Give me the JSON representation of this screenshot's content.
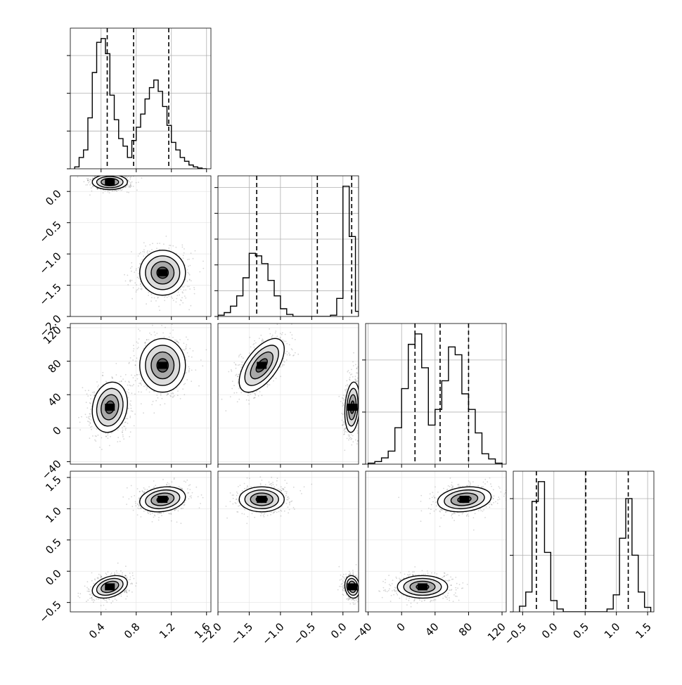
{
  "chart_data": {
    "type": "corner",
    "parameters": [
      {
        "range": [
          0.05,
          1.65
        ],
        "ticks": [
          0.4,
          0.8,
          1.2,
          1.6
        ],
        "tick_labels": [
          "0.4",
          "0.8",
          "1.2",
          "1.6"
        ],
        "quantiles": [
          0.47,
          0.77,
          1.17
        ],
        "hist_y_ticks": [
          0,
          1,
          2,
          3
        ]
      },
      {
        "range": [
          -2.0,
          0.25
        ],
        "ticks": [
          -2.0,
          -1.5,
          -1.0,
          -0.5,
          0.0
        ],
        "tick_labels": [
          "−2.0",
          "−1.5",
          "−1.0",
          "−0.5",
          "0.0"
        ],
        "quantiles": [
          -1.38,
          -0.41,
          0.14
        ],
        "hist_y_ticks": [
          0,
          1,
          2,
          3,
          4,
          5
        ]
      },
      {
        "range": [
          -43,
          125
        ],
        "ticks": [
          -40,
          0,
          40,
          80,
          120
        ],
        "tick_labels": [
          "−40",
          "0",
          "40",
          "80",
          "120"
        ],
        "quantiles": [
          16,
          46,
          80
        ],
        "hist_y_ticks": [
          0,
          1,
          2
        ]
      },
      {
        "range": [
          -0.65,
          1.6
        ],
        "ticks": [
          -0.5,
          0.0,
          0.5,
          1.0,
          1.5
        ],
        "tick_labels": [
          "−0.5",
          "0.0",
          "0.5",
          "1.0",
          "1.5"
        ],
        "quantiles": [
          -0.28,
          0.51,
          1.19
        ],
        "hist_y_ticks": [
          0,
          1,
          2
        ]
      }
    ],
    "histograms": [
      {
        "param": 0,
        "edges": [
          0.1,
          0.15,
          0.2,
          0.25,
          0.3,
          0.35,
          0.4,
          0.45,
          0.5,
          0.55,
          0.6,
          0.65,
          0.7,
          0.75,
          0.8,
          0.85,
          0.9,
          0.95,
          1.0,
          1.05,
          1.1,
          1.15,
          1.2,
          1.25,
          1.3,
          1.35,
          1.4,
          1.45,
          1.5,
          1.55,
          1.6
        ],
        "counts": [
          0.05,
          0.3,
          0.5,
          1.35,
          2.55,
          3.35,
          3.45,
          3.05,
          1.95,
          1.3,
          0.8,
          0.6,
          0.3,
          0.75,
          1.1,
          1.45,
          1.85,
          2.15,
          2.35,
          2.05,
          1.65,
          1.15,
          0.7,
          0.5,
          0.3,
          0.2,
          0.1,
          0.05,
          0.02,
          0.0
        ]
      },
      {
        "param": 1,
        "edges": [
          -2.0,
          -1.9,
          -1.8,
          -1.7,
          -1.6,
          -1.5,
          -1.4,
          -1.3,
          -1.2,
          -1.1,
          -1.0,
          -0.9,
          -0.8,
          -0.7,
          -0.6,
          -0.5,
          -0.4,
          -0.3,
          -0.2,
          -0.1,
          0.0,
          0.1,
          0.2,
          0.25
        ],
        "counts": [
          0.05,
          0.15,
          0.4,
          0.8,
          1.5,
          2.45,
          2.35,
          2.05,
          1.4,
          0.8,
          0.3,
          0.08,
          0.0,
          0.0,
          0.0,
          0.0,
          0.0,
          0.0,
          0.05,
          0.7,
          5.05,
          3.1,
          0.2
        ]
      },
      {
        "param": 2,
        "edges": [
          -40,
          -32,
          -24,
          -16,
          -8,
          0,
          8,
          16,
          24,
          32,
          40,
          48,
          56,
          64,
          72,
          80,
          88,
          96,
          104,
          112,
          120
        ],
        "counts": [
          0.02,
          0.05,
          0.12,
          0.25,
          0.7,
          1.45,
          2.3,
          2.5,
          1.85,
          0.75,
          1.05,
          1.6,
          2.25,
          2.1,
          1.35,
          1.05,
          0.6,
          0.2,
          0.1,
          0.02
        ]
      },
      {
        "param": 3,
        "edges": [
          -0.55,
          -0.45,
          -0.35,
          -0.25,
          -0.15,
          -0.05,
          0.05,
          0.15,
          0.25,
          0.35,
          0.45,
          0.55,
          0.65,
          0.75,
          0.85,
          0.95,
          1.05,
          1.15,
          1.25,
          1.35,
          1.45,
          1.55
        ],
        "counts": [
          0.1,
          0.35,
          1.95,
          2.3,
          1.05,
          0.2,
          0.05,
          0.0,
          0.0,
          0.0,
          0.0,
          0.0,
          0.0,
          0.0,
          0.05,
          0.3,
          1.3,
          2.0,
          1.0,
          0.35,
          0.08
        ]
      }
    ],
    "modes": [
      {
        "center": [
          0.5,
          0.15,
          25,
          -0.25
        ],
        "spread": [
          0.1,
          0.06,
          15,
          0.09
        ]
      },
      {
        "center": [
          1.1,
          -1.3,
          75,
          1.15
        ],
        "spread": [
          0.13,
          0.18,
          16,
          0.1
        ]
      }
    ],
    "pair_rho": {
      "1-0": [
        0.0,
        0.0
      ],
      "2-0": [
        0.15,
        0.0
      ],
      "2-1": [
        0.2,
        0.6
      ],
      "3-0": [
        0.35,
        0.2
      ],
      "3-1": [
        -0.15,
        0.0
      ],
      "3-2": [
        0.0,
        0.2
      ]
    },
    "contour_levels_sigma": [
      0.5,
      1.0,
      1.5,
      2.0
    ],
    "scatter_points_per_mode": 650,
    "grid": true,
    "quantile_line_style": "dashed"
  }
}
